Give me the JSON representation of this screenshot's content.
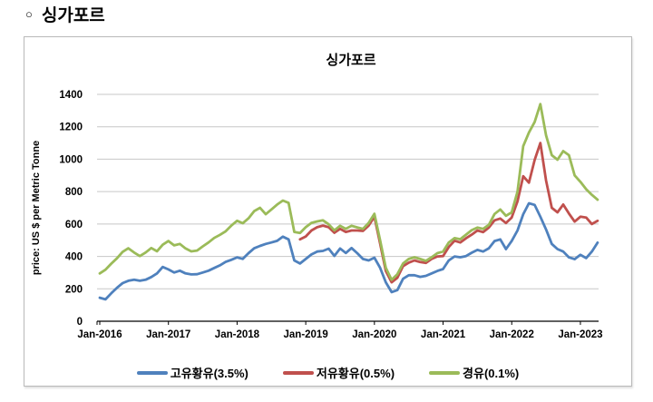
{
  "page": {
    "heading_bullet": "○",
    "heading_text": "싱가포르"
  },
  "chart": {
    "title": "싱가포르",
    "y_axis_title": "price:  US $ per Metric Tonne",
    "legend": [
      {
        "label": "고유황유(3.5%)",
        "color": "#4F81BD"
      },
      {
        "label": "저유황유(0.5%)",
        "color": "#C0504D"
      },
      {
        "label": "경유(0.1%)",
        "color": "#9BBB59"
      }
    ]
  },
  "chart_data": {
    "type": "line",
    "title": "싱가포르",
    "xlabel": "",
    "ylabel": "price:  US $ per Metric Tonne",
    "x_frequency": "monthly",
    "x_start": "Jan-2016",
    "x_end": "Apr-2023",
    "x_tick_labels": [
      "Jan-2016",
      "Jan-2017",
      "Jan-2018",
      "Jan-2019",
      "Jan-2020",
      "Jan-2021",
      "Jan-2022",
      "Jan-2023"
    ],
    "ylim": [
      0,
      1400
    ],
    "y_ticks": [
      0,
      200,
      400,
      600,
      800,
      1000,
      1200,
      1400
    ],
    "grid": true,
    "legend_position": "bottom",
    "gridline_color": "#c7c7c7",
    "axis_color": "#000000",
    "series": [
      {
        "name": "고유황유(3.5%)",
        "color": "#4F81BD",
        "values": [
          145,
          135,
          172,
          206,
          235,
          250,
          256,
          250,
          256,
          273,
          295,
          335,
          320,
          301,
          312,
          295,
          289,
          290,
          301,
          312,
          329,
          345,
          366,
          379,
          394,
          385,
          420,
          450,
          465,
          477,
          486,
          496,
          522,
          505,
          375,
          356,
          384,
          412,
          430,
          434,
          448,
          403,
          449,
          421,
          452,
          420,
          384,
          375,
          392,
          330,
          240,
          180,
          192,
          262,
          284,
          284,
          274,
          280,
          295,
          310,
          322,
          375,
          400,
          395,
          402,
          423,
          440,
          430,
          450,
          495,
          505,
          445,
          495,
          560,
          660,
          728,
          718,
          645,
          566,
          477,
          445,
          430,
          394,
          383,
          410,
          390,
          430,
          485
        ]
      },
      {
        "name": "저유황유(0.5%)",
        "color": "#C0504D",
        "values": [
          null,
          null,
          null,
          null,
          null,
          null,
          null,
          null,
          null,
          null,
          null,
          null,
          null,
          null,
          null,
          null,
          null,
          null,
          null,
          null,
          null,
          null,
          null,
          null,
          null,
          null,
          null,
          null,
          null,
          null,
          null,
          null,
          null,
          null,
          null,
          505,
          523,
          560,
          580,
          590,
          580,
          546,
          570,
          551,
          560,
          560,
          557,
          590,
          645,
          480,
          310,
          240,
          268,
          340,
          362,
          375,
          365,
          360,
          385,
          400,
          402,
          458,
          497,
          486,
          512,
          534,
          560,
          550,
          578,
          623,
          634,
          606,
          640,
          740,
          895,
          855,
          995,
          1100,
          868,
          700,
          672,
          720,
          665,
          615,
          645,
          640,
          600,
          620
        ]
      },
      {
        "name": "경유(0.1%)",
        "color": "#9BBB59",
        "values": [
          295,
          318,
          355,
          388,
          428,
          450,
          424,
          402,
          424,
          452,
          432,
          472,
          495,
          468,
          477,
          449,
          431,
          436,
          462,
          486,
          514,
          533,
          555,
          590,
          620,
          605,
          635,
          680,
          700,
          660,
          690,
          720,
          745,
          730,
          551,
          545,
          580,
          607,
          616,
          623,
          598,
          561,
          589,
          570,
          589,
          579,
          570,
          607,
          663,
          500,
          330,
          256,
          290,
          356,
          384,
          395,
          384,
          373,
          395,
          420,
          430,
          486,
          513,
          506,
          534,
          562,
          578,
          570,
          595,
          662,
          690,
          651,
          672,
          800,
          1080,
          1164,
          1230,
          1340,
          1147,
          1025,
          997,
          1050,
          1025,
          900,
          860,
          815,
          780,
          750
        ]
      }
    ]
  }
}
